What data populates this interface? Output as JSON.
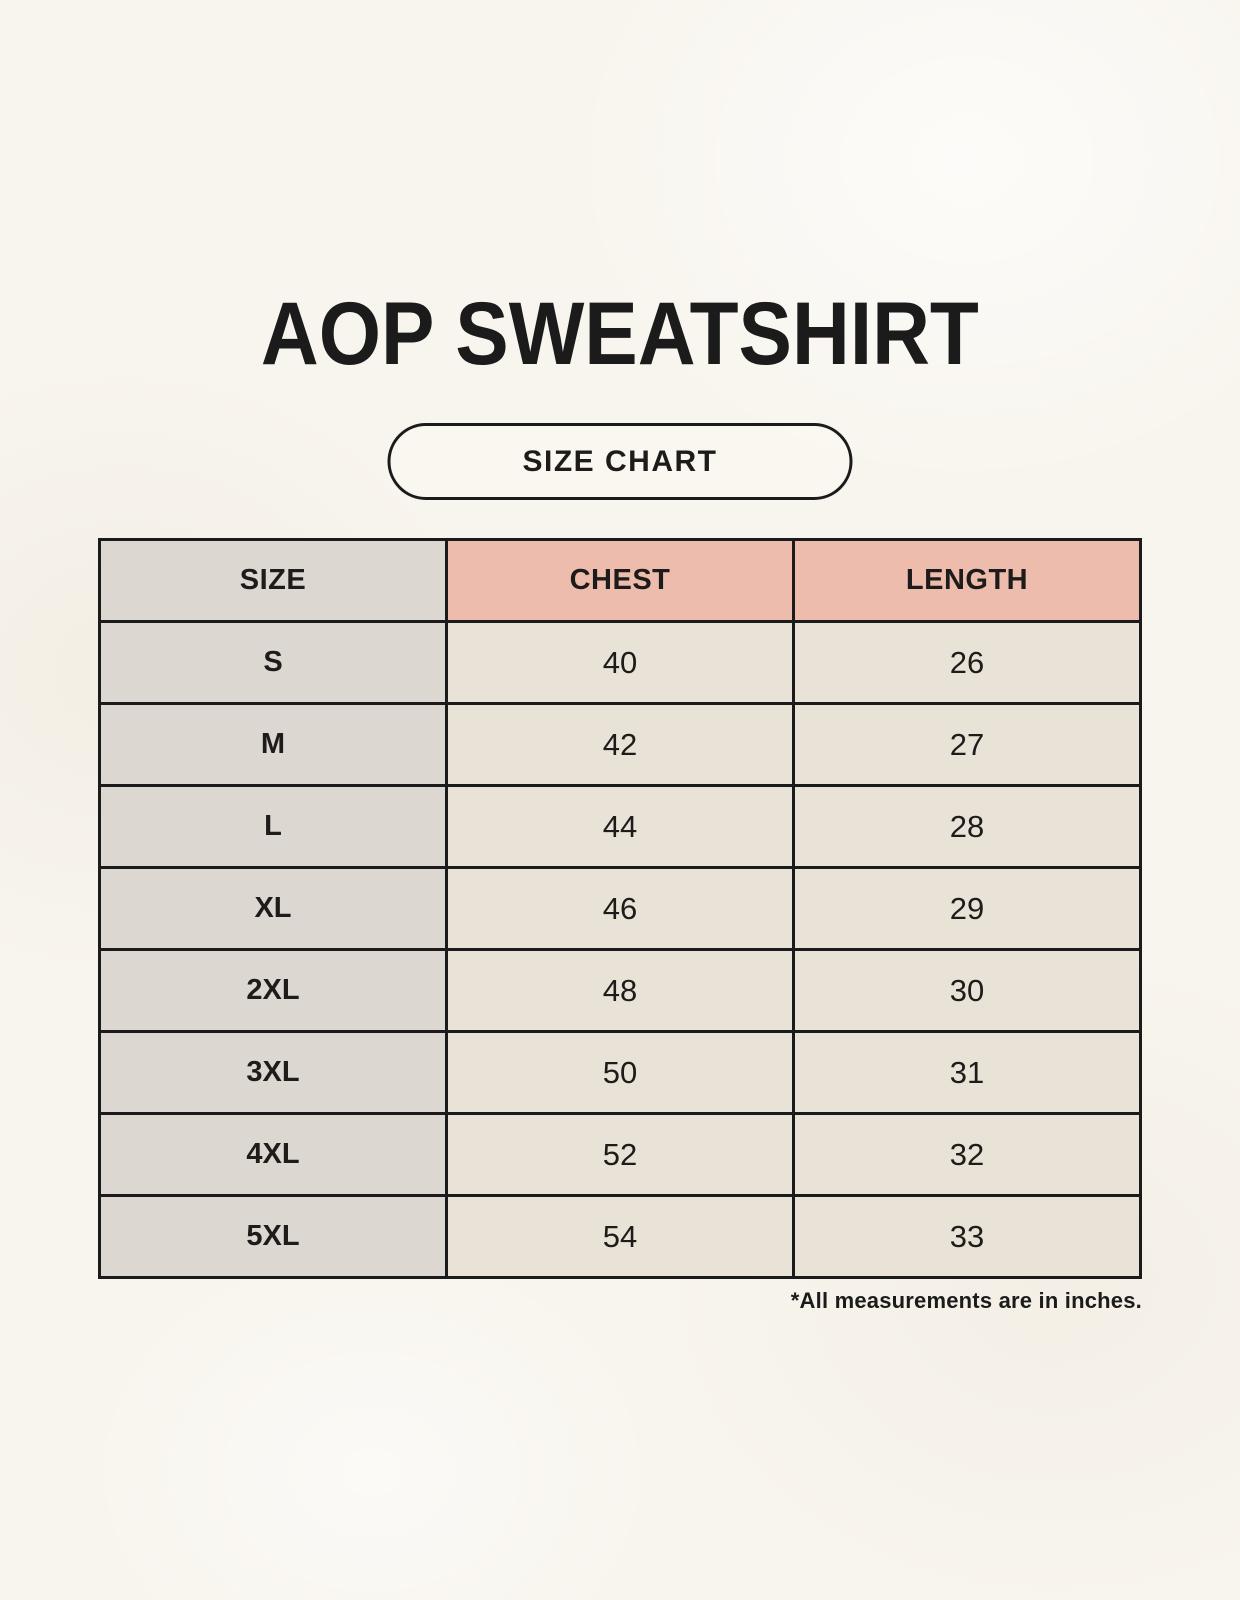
{
  "chart_data": {
    "type": "table",
    "title": "AOP SWEATSHIRT",
    "subtitle": "SIZE CHART",
    "columns": [
      "SIZE",
      "CHEST",
      "LENGTH"
    ],
    "rows": [
      [
        "S",
        40,
        26
      ],
      [
        "M",
        42,
        27
      ],
      [
        "L",
        44,
        28
      ],
      [
        "XL",
        46,
        29
      ],
      [
        "2XL",
        48,
        30
      ],
      [
        "3XL",
        50,
        31
      ],
      [
        "4XL",
        52,
        32
      ],
      [
        "5XL",
        54,
        33
      ]
    ],
    "note": "*All measurements are in inches.",
    "layout_hints": {
      "header_fill_first_col": "gray",
      "header_fill_measure_cols": "pink",
      "grid": "solid dark borders",
      "note_position": "bottom-right under table"
    }
  },
  "colors": {
    "background": "#f8f5ee",
    "header_pink": "#eebcad",
    "size_col_gray": "#ddd7d1",
    "cell_cream": "#e9e2d7",
    "border": "#1b1b1b"
  }
}
